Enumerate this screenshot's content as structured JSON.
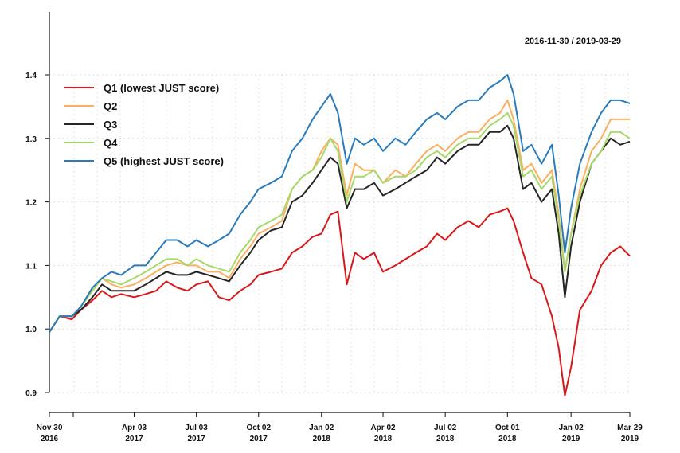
{
  "chart_data": {
    "type": "line",
    "date_range_label": "2016-11-30 / 2019-03-29",
    "y_ticks": [
      "0.9",
      "1.0",
      "1.1",
      "1.2",
      "1.3",
      "1.4"
    ],
    "ylim": [
      0.88,
      1.5
    ],
    "grid": true,
    "legend_position": "top-left",
    "x_ticks": [
      {
        "date": "2016-11-30",
        "line1": "Nov 30",
        "line2": "2016"
      },
      {
        "date": "2017-04-03",
        "line1": "Apr 03",
        "line2": "2017"
      },
      {
        "date": "2017-07-03",
        "line1": "Jul 03",
        "line2": "2017"
      },
      {
        "date": "2017-10-02",
        "line1": "Oct 02",
        "line2": "2017"
      },
      {
        "date": "2018-01-02",
        "line1": "Jan 02",
        "line2": "2018"
      },
      {
        "date": "2018-04-02",
        "line1": "Apr 02",
        "line2": "2018"
      },
      {
        "date": "2018-07-02",
        "line1": "Jul 02",
        "line2": "2018"
      },
      {
        "date": "2018-10-01",
        "line1": "Oct 01",
        "line2": "2018"
      },
      {
        "date": "2019-01-02",
        "line1": "Jan 02",
        "line2": "2019"
      },
      {
        "date": "2019-03-29",
        "line1": "Mar 29",
        "line2": "2019"
      }
    ],
    "x": [
      "2016-11-30",
      "2016-12-15",
      "2017-01-02",
      "2017-01-15",
      "2017-02-01",
      "2017-02-15",
      "2017-03-01",
      "2017-03-15",
      "2017-04-03",
      "2017-04-20",
      "2017-05-05",
      "2017-05-20",
      "2017-06-05",
      "2017-06-20",
      "2017-07-03",
      "2017-07-20",
      "2017-08-05",
      "2017-08-20",
      "2017-09-05",
      "2017-09-20",
      "2017-10-02",
      "2017-10-20",
      "2017-11-05",
      "2017-11-20",
      "2017-12-05",
      "2017-12-20",
      "2018-01-02",
      "2018-01-15",
      "2018-01-26",
      "2018-02-08",
      "2018-02-20",
      "2018-03-05",
      "2018-03-20",
      "2018-04-02",
      "2018-04-20",
      "2018-05-05",
      "2018-05-20",
      "2018-06-05",
      "2018-06-20",
      "2018-07-02",
      "2018-07-20",
      "2018-08-05",
      "2018-08-20",
      "2018-09-05",
      "2018-09-20",
      "2018-10-01",
      "2018-10-10",
      "2018-10-24",
      "2018-11-05",
      "2018-11-20",
      "2018-12-05",
      "2018-12-15",
      "2018-12-24",
      "2019-01-02",
      "2019-01-15",
      "2019-02-01",
      "2019-02-15",
      "2019-03-01",
      "2019-03-15",
      "2019-03-29"
    ],
    "series": [
      {
        "name": "Q1 (lowest JUST score)",
        "color": "#d7191c",
        "values": [
          0.995,
          1.02,
          1.015,
          1.03,
          1.045,
          1.06,
          1.05,
          1.055,
          1.05,
          1.055,
          1.06,
          1.075,
          1.065,
          1.06,
          1.07,
          1.075,
          1.05,
          1.045,
          1.06,
          1.07,
          1.085,
          1.09,
          1.095,
          1.12,
          1.13,
          1.145,
          1.15,
          1.18,
          1.185,
          1.07,
          1.12,
          1.11,
          1.12,
          1.09,
          1.1,
          1.11,
          1.12,
          1.13,
          1.15,
          1.14,
          1.16,
          1.17,
          1.16,
          1.18,
          1.185,
          1.19,
          1.17,
          1.12,
          1.08,
          1.07,
          1.02,
          0.97,
          0.895,
          0.94,
          1.03,
          1.06,
          1.1,
          1.12,
          1.13,
          1.115
        ]
      },
      {
        "name": "Q2",
        "color": "#fdae61",
        "values": [
          0.995,
          1.02,
          1.02,
          1.035,
          1.06,
          1.08,
          1.07,
          1.065,
          1.07,
          1.08,
          1.09,
          1.1,
          1.105,
          1.1,
          1.1,
          1.09,
          1.09,
          1.08,
          1.11,
          1.13,
          1.15,
          1.16,
          1.17,
          1.22,
          1.24,
          1.25,
          1.28,
          1.3,
          1.29,
          1.21,
          1.26,
          1.25,
          1.25,
          1.23,
          1.25,
          1.24,
          1.26,
          1.28,
          1.29,
          1.28,
          1.3,
          1.31,
          1.31,
          1.33,
          1.34,
          1.36,
          1.33,
          1.25,
          1.26,
          1.23,
          1.25,
          1.18,
          1.09,
          1.15,
          1.22,
          1.28,
          1.3,
          1.33,
          1.33,
          1.33
        ]
      },
      {
        "name": "Q3",
        "color": "#252525",
        "values": [
          0.995,
          1.02,
          1.02,
          1.03,
          1.05,
          1.07,
          1.06,
          1.06,
          1.06,
          1.07,
          1.08,
          1.09,
          1.085,
          1.085,
          1.09,
          1.085,
          1.08,
          1.075,
          1.1,
          1.12,
          1.14,
          1.155,
          1.16,
          1.2,
          1.21,
          1.23,
          1.25,
          1.27,
          1.26,
          1.19,
          1.22,
          1.22,
          1.23,
          1.21,
          1.22,
          1.23,
          1.24,
          1.25,
          1.27,
          1.26,
          1.28,
          1.29,
          1.29,
          1.31,
          1.31,
          1.32,
          1.3,
          1.22,
          1.23,
          1.2,
          1.22,
          1.15,
          1.05,
          1.13,
          1.2,
          1.26,
          1.28,
          1.3,
          1.29,
          1.295
        ]
      },
      {
        "name": "Q4",
        "color": "#a6d96a",
        "values": [
          0.995,
          1.02,
          1.02,
          1.035,
          1.06,
          1.08,
          1.075,
          1.07,
          1.08,
          1.09,
          1.1,
          1.11,
          1.11,
          1.1,
          1.11,
          1.1,
          1.095,
          1.09,
          1.12,
          1.14,
          1.16,
          1.17,
          1.18,
          1.22,
          1.24,
          1.25,
          1.27,
          1.3,
          1.28,
          1.2,
          1.24,
          1.24,
          1.25,
          1.23,
          1.24,
          1.24,
          1.25,
          1.27,
          1.28,
          1.27,
          1.29,
          1.3,
          1.3,
          1.32,
          1.33,
          1.34,
          1.32,
          1.24,
          1.25,
          1.22,
          1.24,
          1.17,
          1.09,
          1.15,
          1.21,
          1.26,
          1.28,
          1.31,
          1.31,
          1.3
        ]
      },
      {
        "name": "Q5 (highest JUST score)",
        "color": "#2b7bba",
        "values": [
          0.995,
          1.02,
          1.02,
          1.035,
          1.065,
          1.08,
          1.09,
          1.085,
          1.1,
          1.1,
          1.12,
          1.14,
          1.14,
          1.13,
          1.14,
          1.13,
          1.14,
          1.15,
          1.18,
          1.2,
          1.22,
          1.23,
          1.24,
          1.28,
          1.3,
          1.33,
          1.35,
          1.37,
          1.34,
          1.26,
          1.3,
          1.29,
          1.3,
          1.28,
          1.3,
          1.29,
          1.31,
          1.33,
          1.34,
          1.33,
          1.35,
          1.36,
          1.36,
          1.38,
          1.39,
          1.4,
          1.37,
          1.28,
          1.29,
          1.26,
          1.29,
          1.21,
          1.12,
          1.19,
          1.26,
          1.31,
          1.34,
          1.36,
          1.36,
          1.355
        ]
      }
    ]
  }
}
